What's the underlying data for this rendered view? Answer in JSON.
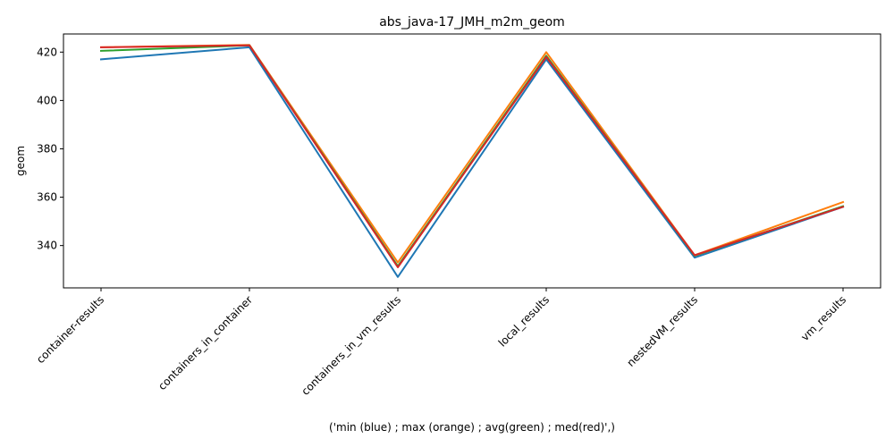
{
  "chart_data": {
    "type": "line",
    "title": "abs_java-17_JMH_m2m_geom",
    "xlabel": "('min (blue) ; max (orange) ; avg(green) ; med(red)',)",
    "ylabel": "geom",
    "categories": [
      "container-results",
      "containers_in_container",
      "containers_in_vm_results",
      "local_results",
      "nestedVM_results",
      "vm_results"
    ],
    "ylim": [
      322.5,
      427.5
    ],
    "yticks": [
      340,
      360,
      380,
      400,
      420
    ],
    "grid": false,
    "series": [
      {
        "color": "#1f77b4",
        "values": [
          417.0,
          422.0,
          327.0,
          417.0,
          335.0,
          356.0
        ]
      },
      {
        "color": "#ff7f0e",
        "values": [
          422.0,
          423.0,
          333.0,
          420.0,
          336.0,
          358.0
        ]
      },
      {
        "color": "#2ca02c",
        "values": [
          420.5,
          422.8,
          331.5,
          418.5,
          335.8,
          356.3
        ]
      },
      {
        "color": "#d62728",
        "values": [
          422.0,
          422.8,
          331.0,
          418.0,
          336.0,
          356.0
        ]
      }
    ]
  }
}
